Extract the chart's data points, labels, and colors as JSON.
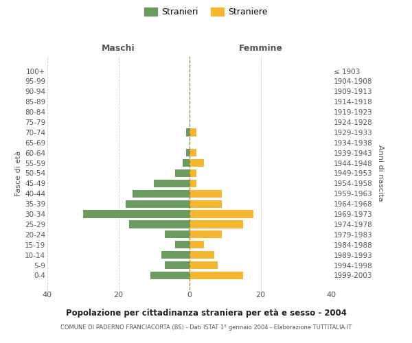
{
  "age_groups": [
    "0-4",
    "5-9",
    "10-14",
    "15-19",
    "20-24",
    "25-29",
    "30-34",
    "35-39",
    "40-44",
    "45-49",
    "50-54",
    "55-59",
    "60-64",
    "65-69",
    "70-74",
    "75-79",
    "80-84",
    "85-89",
    "90-94",
    "95-99",
    "100+"
  ],
  "birth_years": [
    "1999-2003",
    "1994-1998",
    "1989-1993",
    "1984-1988",
    "1979-1983",
    "1974-1978",
    "1969-1973",
    "1964-1968",
    "1959-1963",
    "1954-1958",
    "1949-1953",
    "1944-1948",
    "1939-1943",
    "1934-1938",
    "1929-1933",
    "1924-1928",
    "1919-1923",
    "1914-1918",
    "1909-1913",
    "1904-1908",
    "≤ 1903"
  ],
  "males": [
    11,
    7,
    8,
    4,
    7,
    17,
    30,
    18,
    16,
    10,
    4,
    2,
    1,
    0,
    1,
    0,
    0,
    0,
    0,
    0,
    0
  ],
  "females": [
    15,
    8,
    7,
    4,
    9,
    15,
    18,
    9,
    9,
    2,
    2,
    4,
    2,
    0,
    2,
    0,
    0,
    0,
    0,
    0,
    0
  ],
  "male_color": "#6b9b5e",
  "female_color": "#f5b731",
  "center_line_color": "#8b8b3a",
  "grid_color": "#cccccc",
  "title": "Popolazione per cittadinanza straniera per età e sesso - 2004",
  "subtitle": "COMUNE DI PADERNO FRANCIACORTA (BS) - Dati ISTAT 1° gennaio 2004 - Elaborazione TUTTITALIA.IT",
  "header_left": "Maschi",
  "header_right": "Femmine",
  "ylabel_left": "Fasce di età",
  "ylabel_right": "Anni di nascita",
  "legend_stranieri": "Stranieri",
  "legend_straniere": "Straniere",
  "xlim": 40,
  "background_color": "#ffffff",
  "text_color": "#555555",
  "title_color": "#222222"
}
